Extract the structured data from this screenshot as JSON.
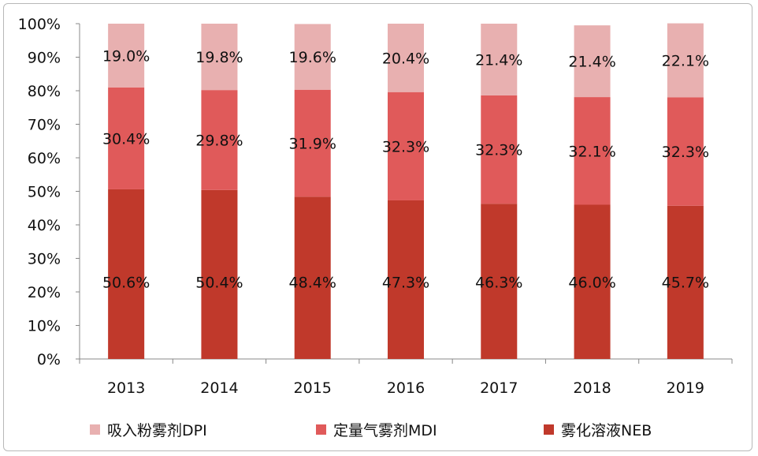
{
  "chart_data": {
    "type": "bar",
    "stacked": true,
    "percent": true,
    "categories": [
      "2013",
      "2014",
      "2015",
      "2016",
      "2017",
      "2018",
      "2019"
    ],
    "series": [
      {
        "name": "雾化溶液NEB",
        "values": [
          50.6,
          50.4,
          48.4,
          47.3,
          46.3,
          46.0,
          45.7
        ],
        "labels": [
          "50.6%",
          "50.4%",
          "48.4%",
          "47.3%",
          "46.3%",
          "46.0%",
          "45.7%"
        ],
        "color": "#c0392b"
      },
      {
        "name": "定量气雾剂MDI",
        "values": [
          30.4,
          29.8,
          31.9,
          32.3,
          32.3,
          32.1,
          32.3
        ],
        "labels": [
          "30.4%",
          "29.8%",
          "31.9%",
          "32.3%",
          "32.3%",
          "32.1%",
          "32.3%"
        ],
        "color": "#e05a5a"
      },
      {
        "name": "吸入粉雾剂DPI",
        "values": [
          19.0,
          19.8,
          19.6,
          20.4,
          21.4,
          21.4,
          22.1
        ],
        "labels": [
          "19.0%",
          "19.8%",
          "19.6%",
          "20.4%",
          "21.4%",
          "21.4%",
          "22.1%"
        ],
        "color": "#e8b0b0"
      }
    ],
    "y_ticks": [
      "0%",
      "10%",
      "20%",
      "30%",
      "40%",
      "50%",
      "60%",
      "70%",
      "80%",
      "90%",
      "100%"
    ],
    "ylim": [
      0,
      100
    ],
    "legend_order": [
      "吸入粉雾剂DPI",
      "定量气雾剂MDI",
      "雾化溶液NEB"
    ],
    "legend_position": "bottom",
    "grid": false
  }
}
